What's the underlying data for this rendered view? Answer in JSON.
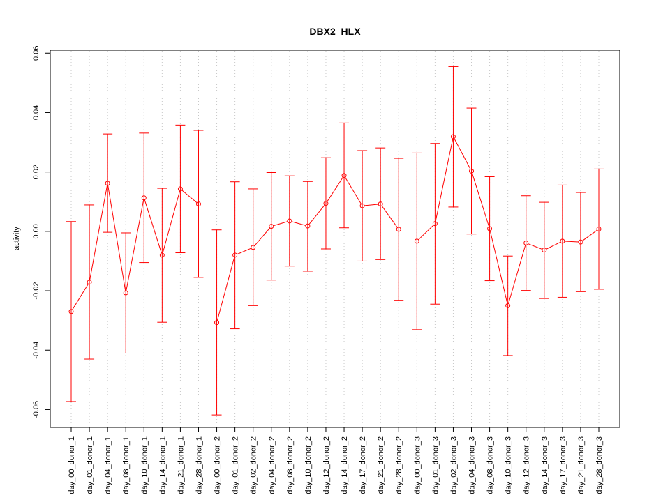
{
  "chart_data": {
    "type": "line",
    "title": "DBX2_HLX",
    "xlabel": "",
    "ylabel": "activity",
    "ylim": [
      -0.066,
      0.061
    ],
    "yticks": [
      -0.06,
      -0.04,
      -0.02,
      0.0,
      0.02,
      0.04,
      0.06
    ],
    "ytick_labels": [
      "-0.06",
      "-0.04",
      "-0.02",
      "0.00",
      "0.02",
      "0.04",
      "0.06"
    ],
    "grid": "vertical dotted",
    "colors": {
      "series": "#ff0000",
      "grid": "#c8c8c8",
      "axis": "#000000"
    },
    "categories": [
      "day_00_donor_1",
      "day_01_donor_1",
      "day_04_donor_1",
      "day_08_donor_1",
      "day_10_donor_1",
      "day_14_donor_1",
      "day_21_donor_1",
      "day_28_donor_1",
      "day_00_donor_2",
      "day_01_donor_2",
      "day_02_donor_2",
      "day_04_donor_2",
      "day_08_donor_2",
      "day_10_donor_2",
      "day_12_donor_2",
      "day_14_donor_2",
      "day_17_donor_2",
      "day_21_donor_2",
      "day_28_donor_2",
      "day_00_donor_3",
      "day_01_donor_3",
      "day_02_donor_3",
      "day_04_donor_3",
      "day_08_donor_3",
      "day_10_donor_3",
      "day_12_donor_3",
      "day_14_donor_3",
      "day_17_donor_3",
      "day_21_donor_3",
      "day_28_donor_3"
    ],
    "groups": [
      {
        "start": 0,
        "end": 7
      },
      {
        "start": 8,
        "end": 18
      },
      {
        "start": 19,
        "end": 29
      }
    ],
    "values": [
      -0.027,
      -0.0171,
      0.0162,
      -0.0207,
      0.0113,
      -0.008,
      0.0143,
      0.0092,
      -0.0307,
      -0.008,
      -0.0054,
      0.0017,
      0.0035,
      0.0018,
      0.0094,
      0.0188,
      0.0086,
      0.0092,
      0.0007,
      -0.0033,
      0.0026,
      0.0319,
      0.0203,
      0.0009,
      -0.025,
      -0.0039,
      -0.0063,
      -0.0033,
      -0.0036,
      0.0008
    ],
    "upper": [
      0.0033,
      0.0089,
      0.0328,
      -0.0005,
      0.0331,
      0.0145,
      0.0358,
      0.034,
      0.0005,
      0.0167,
      0.0143,
      0.0198,
      0.0187,
      0.0168,
      0.0248,
      0.0365,
      0.0272,
      0.0281,
      0.0246,
      0.0264,
      0.0296,
      0.0555,
      0.0415,
      0.0184,
      -0.0083,
      0.012,
      0.0098,
      0.0156,
      0.0131,
      0.021
    ],
    "lower": [
      -0.0573,
      -0.043,
      -0.0003,
      -0.041,
      -0.0105,
      -0.0306,
      -0.0072,
      -0.0155,
      -0.0618,
      -0.0328,
      -0.025,
      -0.0164,
      -0.0117,
      -0.0134,
      -0.0059,
      0.0012,
      -0.01,
      -0.0095,
      -0.0232,
      -0.0331,
      -0.0245,
      0.0082,
      -0.0009,
      -0.0166,
      -0.0418,
      -0.0199,
      -0.0226,
      -0.0222,
      -0.0203,
      -0.0195
    ]
  }
}
